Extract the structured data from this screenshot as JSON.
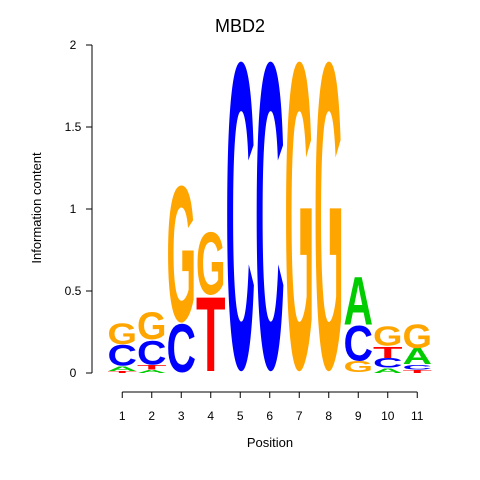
{
  "chart_data": {
    "type": "sequence-logo",
    "title": "MBD2",
    "xlabel": "Position",
    "ylabel": "Information content",
    "ylim": [
      0,
      2
    ],
    "y_ticks": [
      "0",
      "0.5",
      "1",
      "1.5",
      "2"
    ],
    "positions": [
      "1",
      "2",
      "3",
      "4",
      "5",
      "6",
      "7",
      "8",
      "9",
      "10",
      "11"
    ],
    "colors": {
      "A": "#00cc00",
      "C": "#0000ff",
      "G": "#ffa500",
      "T": "#ff0000"
    },
    "columns": [
      {
        "position": "1",
        "letters": [
          {
            "base": "T",
            "height": 0.01
          },
          {
            "base": "A",
            "height": 0.03
          },
          {
            "base": "C",
            "height": 0.13
          },
          {
            "base": "G",
            "height": 0.13
          }
        ]
      },
      {
        "position": "2",
        "letters": [
          {
            "base": "A",
            "height": 0.02
          },
          {
            "base": "T",
            "height": 0.03
          },
          {
            "base": "C",
            "height": 0.15
          },
          {
            "base": "G",
            "height": 0.17
          }
        ]
      },
      {
        "position": "3",
        "letters": [
          {
            "base": "C",
            "height": 0.3
          },
          {
            "base": "G",
            "height": 0.85
          }
        ]
      },
      {
        "position": "4",
        "letters": [
          {
            "base": "T",
            "height": 0.47
          },
          {
            "base": "G",
            "height": 0.39
          }
        ]
      },
      {
        "position": "5",
        "letters": [
          {
            "base": "C",
            "height": 1.92
          }
        ]
      },
      {
        "position": "6",
        "letters": [
          {
            "base": "C",
            "height": 1.92
          }
        ]
      },
      {
        "position": "7",
        "letters": [
          {
            "base": "G",
            "height": 1.92
          }
        ]
      },
      {
        "position": "8",
        "letters": [
          {
            "base": "G",
            "height": 1.92
          }
        ]
      },
      {
        "position": "9",
        "letters": [
          {
            "base": "G",
            "height": 0.07
          },
          {
            "base": "C",
            "height": 0.22
          },
          {
            "base": "A",
            "height": 0.3
          }
        ]
      },
      {
        "position": "10",
        "letters": [
          {
            "base": "A",
            "height": 0.03
          },
          {
            "base": "C",
            "height": 0.06
          },
          {
            "base": "T",
            "height": 0.07
          },
          {
            "base": "G",
            "height": 0.12
          }
        ]
      },
      {
        "position": "11",
        "letters": [
          {
            "base": "T",
            "height": 0.02
          },
          {
            "base": "C",
            "height": 0.03
          },
          {
            "base": "A",
            "height": 0.1
          },
          {
            "base": "G",
            "height": 0.15
          }
        ]
      }
    ]
  }
}
